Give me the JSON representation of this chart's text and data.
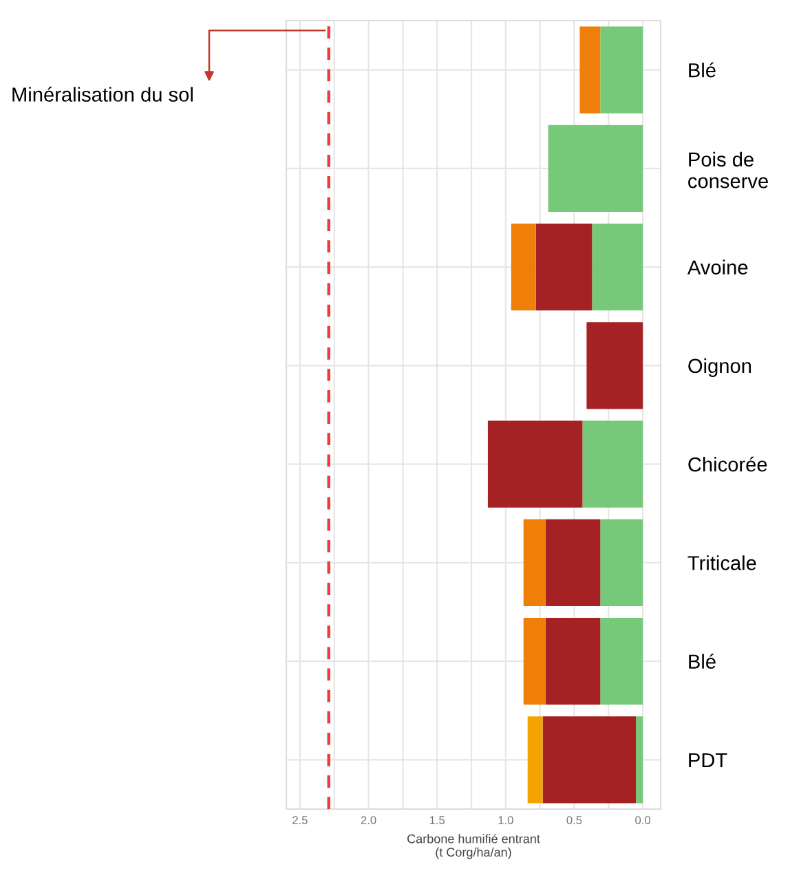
{
  "chart_data": {
    "type": "bar",
    "orientation": "horizontal",
    "stacked": true,
    "categories": [
      "Blé",
      "Pois de\nconserve",
      "Avoine",
      "Oignon",
      "Chicorée",
      "Triticale",
      "Blé",
      "PDT"
    ],
    "series": [
      {
        "color": "#77c97a",
        "values": [
          0.31,
          0.69,
          0.37,
          0,
          0.44,
          0.31,
          0.31,
          0.05
        ]
      },
      {
        "color": "#a52224",
        "values": [
          0,
          0,
          0.41,
          0.41,
          0.69,
          0.4,
          0.4,
          0.68
        ]
      },
      {
        "colors": [
          "#f07f0a",
          "#f07f0a",
          "#f07f0a",
          "#f07f0a",
          "#f07f0a",
          "#f07f0a",
          "#f07f0a",
          "#f5a300"
        ],
        "values": [
          0.15,
          0,
          0.18,
          0,
          0,
          0.16,
          0.16,
          0.11
        ]
      }
    ],
    "xlabel": "Carbone humifié entrant\n(t Corg/ha/an)",
    "xlim": [
      2.6,
      -0.13
    ],
    "xticks": [
      {
        "value": 2.5,
        "label": "2.5"
      },
      {
        "value": 2.25,
        "label": null
      },
      {
        "value": 2.0,
        "label": "2.0"
      },
      {
        "value": 1.75,
        "label": null
      },
      {
        "value": 1.5,
        "label": "1.5"
      },
      {
        "value": 1.25,
        "label": null
      },
      {
        "value": 1.0,
        "label": "1.0"
      },
      {
        "value": 0.75,
        "label": null
      },
      {
        "value": 0.5,
        "label": "0.5"
      },
      {
        "value": 0.25,
        "label": null
      },
      {
        "value": 0.0,
        "label": "0.0"
      }
    ],
    "ref_lines": [
      {
        "axis": "x",
        "value": 2.29,
        "label": "Minéralisation du sol",
        "color": "#ee3b3b",
        "line_style": "dashed"
      }
    ],
    "grid": true
  }
}
